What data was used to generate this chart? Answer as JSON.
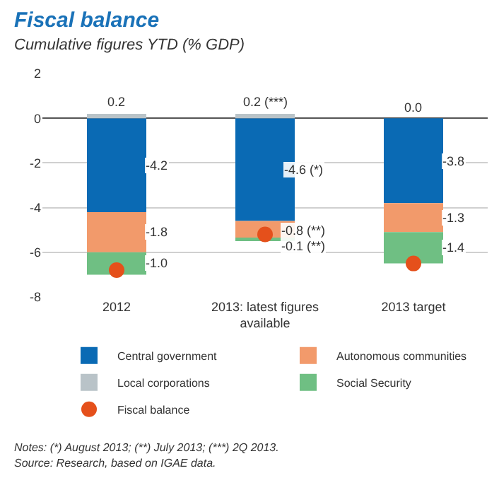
{
  "chart_data": {
    "type": "bar",
    "stacked": true,
    "title": "Fiscal balance",
    "subtitle": "Cumulative figures YTD (% GDP)",
    "categories": [
      "2012",
      "2013: latest figures available",
      "2013 target"
    ],
    "series": [
      {
        "name": "Central government",
        "color": "#0a6ab4",
        "values": [
          -4.2,
          -4.6,
          -3.8
        ],
        "value_labels": [
          "-4.2",
          "-4.6 (*)",
          "-3.8"
        ]
      },
      {
        "name": "Autonomous communities",
        "color": "#f29a6b",
        "values": [
          -1.8,
          -0.8,
          -1.3
        ],
        "value_labels": [
          "-1.8",
          "-0.8 (**)",
          "-1.3"
        ]
      },
      {
        "name": "Local corporations",
        "color": "#b9c3c8",
        "values": [
          0.2,
          0.2,
          0.0
        ],
        "value_labels": [
          "0.2",
          "0.2 (***)",
          "0.0"
        ]
      },
      {
        "name": "Social Security",
        "color": "#6fbf83",
        "values": [
          -1.0,
          -0.1,
          -1.4
        ],
        "value_labels": [
          "-1.0",
          "-0.1 (**)",
          "-1.4"
        ]
      },
      {
        "name": "Fiscal balance",
        "type": "scatter",
        "marker": "circle",
        "color": "#e5501b",
        "values": [
          -6.8,
          -5.2,
          -6.5
        ]
      }
    ],
    "ylim": [
      -8,
      2
    ],
    "yticks": [
      -8,
      -6,
      -4,
      -2,
      0,
      2
    ],
    "grid": "y",
    "legend": "bottom",
    "annotations": [
      "Notes: (*) August 2013; (**) July 2013; (***) 2Q 2013.",
      "Source: Research, based on IGAE data."
    ]
  }
}
